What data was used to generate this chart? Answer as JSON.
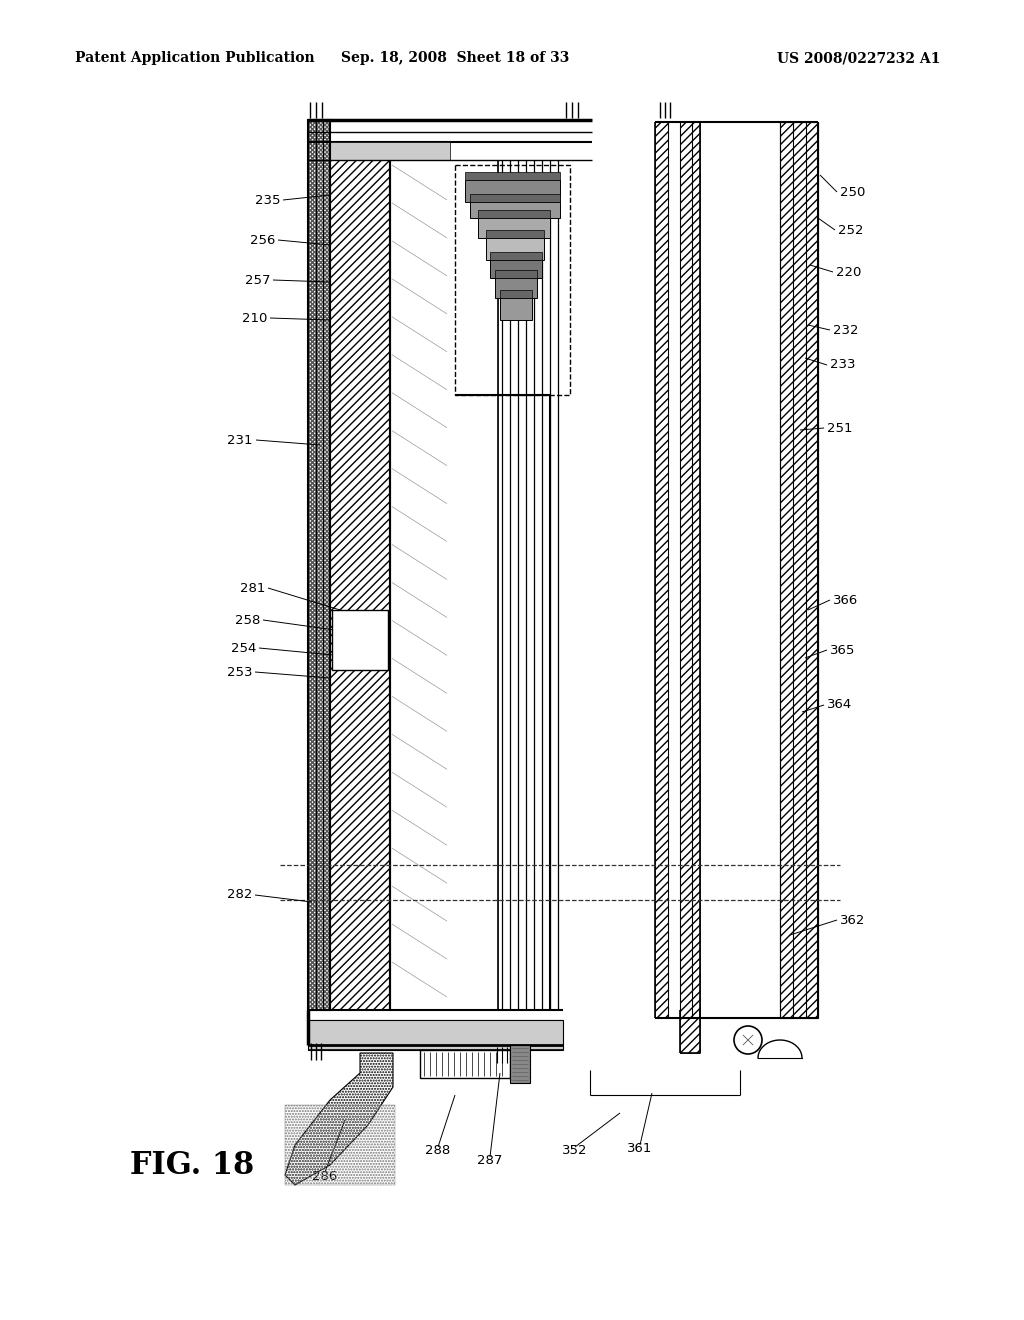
{
  "bg_color": "#ffffff",
  "header_left": "Patent Application Publication",
  "header_mid": "Sep. 18, 2008  Sheet 18 of 33",
  "header_right": "US 2008/0227232 A1",
  "fig_caption": "FIG. 18"
}
